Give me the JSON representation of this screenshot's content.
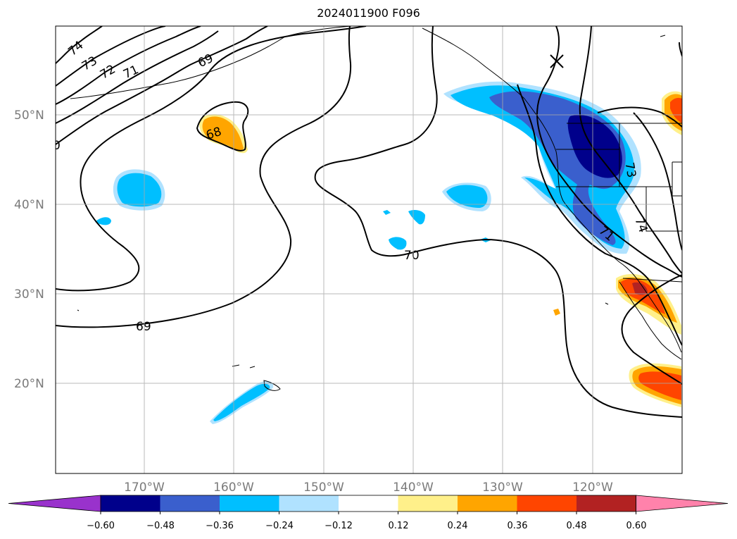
{
  "title": "2024011900 F096",
  "map": {
    "lat_labels": [
      "50°N",
      "40°N",
      "30°N",
      "20°N"
    ],
    "lon_labels": [
      "170°W",
      "160°W",
      "150°W",
      "140°W",
      "130°W",
      "120°W"
    ],
    "contour_labels": [
      "74",
      "73",
      "72",
      "71",
      "69",
      "68",
      "70",
      "69",
      "71",
      "73",
      "74",
      "0"
    ]
  },
  "colorbar": {
    "tick_labels": [
      "−0.60",
      "−0.48",
      "−0.36",
      "−0.24",
      "−0.12",
      "0.12",
      "0.24",
      "0.36",
      "0.48",
      "0.60"
    ],
    "colors": [
      "#9932cc",
      "#00008b",
      "#3a5fcd",
      "#00bfff",
      "#b0e2ff",
      "#ffffff",
      "#fff08a",
      "#ffa500",
      "#ff4500",
      "#b22222",
      "#ff82ab"
    ]
  }
}
